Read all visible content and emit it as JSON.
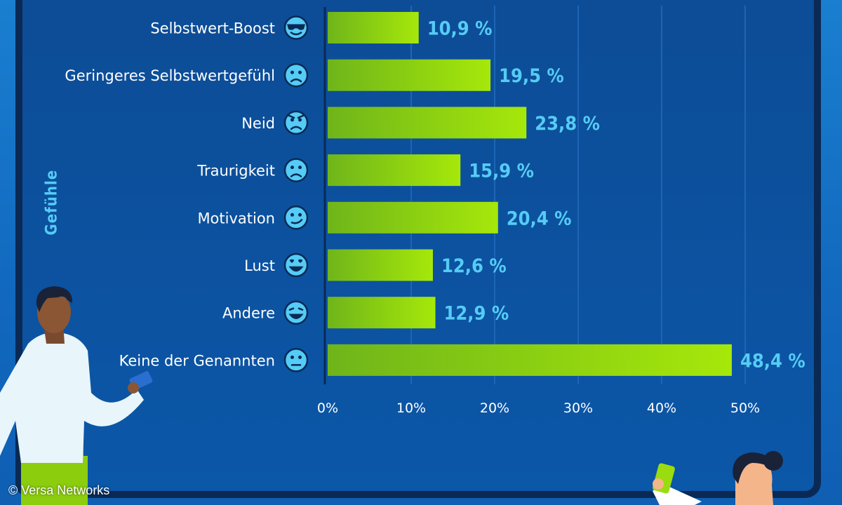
{
  "credit": "© Versa Networks",
  "colors": {
    "bar_start": "#6fb51a",
    "bar_end": "#a6e80a",
    "value_text": "#55ccf5",
    "emoji_face": "#55ccf5",
    "axis_line": "#0a2a55",
    "grid_line": "#1d65b5"
  },
  "chart_data": {
    "type": "bar",
    "orientation": "horizontal",
    "ylabel": "Gefühle",
    "categories": [
      "Selbstwert-Boost",
      "Geringeres Selbstwertgefühl",
      "Neid",
      "Traurigkeit",
      "Motivation",
      "Lust",
      "Andere",
      "Keine der Genannten"
    ],
    "icons": [
      "sunglasses-emoji-icon",
      "frowning-emoji-icon",
      "angry-emoji-icon",
      "sad-emoji-icon",
      "smirk-emoji-icon",
      "heart-eyes-emoji-icon",
      "laughing-tears-emoji-icon",
      "neutral-emoji-icon"
    ],
    "values": [
      10.9,
      19.5,
      23.8,
      15.9,
      20.4,
      12.6,
      12.9,
      48.4
    ],
    "value_labels": [
      "10,9 %",
      "19,5 %",
      "23,8 %",
      "15,9 %",
      "20,4 %",
      "12,6 %",
      "12,9 %",
      "48,4 %"
    ],
    "xlim": [
      0,
      50
    ],
    "xticks": [
      0,
      10,
      20,
      30,
      40,
      50
    ],
    "xtick_labels": [
      "0%",
      "10%",
      "20%",
      "30%",
      "40%",
      "50%"
    ],
    "grid": true
  }
}
